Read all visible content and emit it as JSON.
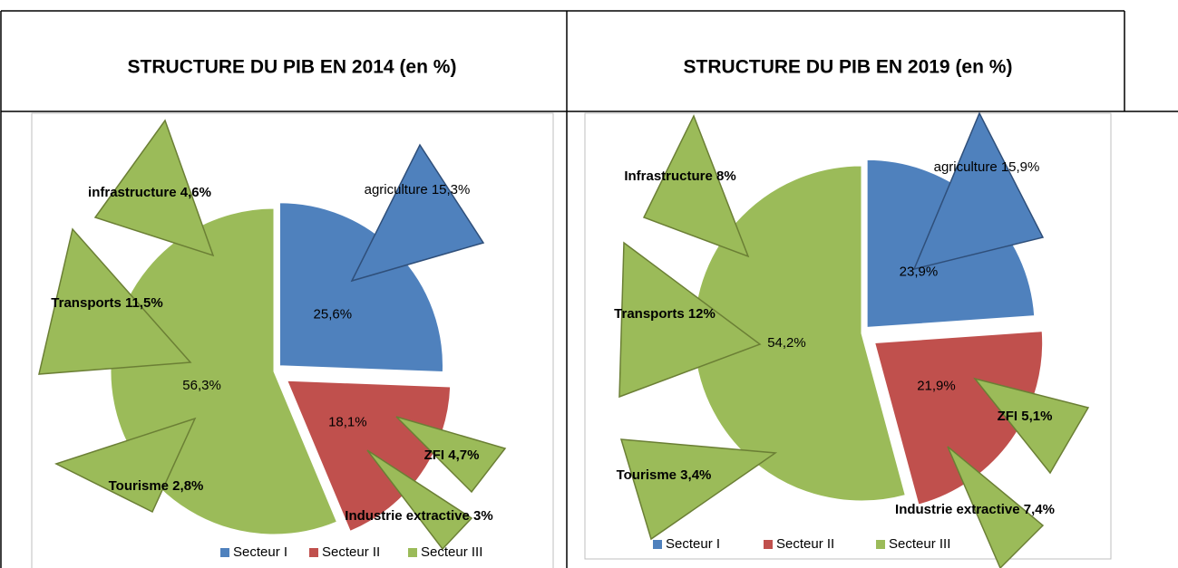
{
  "chart_data": [
    {
      "type": "pie",
      "title": "STRUCTURE DU PIB EN 2014 (en %)",
      "categories": [
        "Secteur I",
        "Secteur II",
        "Secteur III"
      ],
      "values": [
        25.6,
        18.1,
        56.3
      ],
      "value_labels": [
        "25,6%",
        "18,1%",
        "56,3%"
      ],
      "colors": [
        "#4f81bd",
        "#c0504d",
        "#9bbb59"
      ],
      "annotations": [
        "agriculture 15,3%",
        "infrastructure 4,6%",
        "Transports 11,5%",
        "Tourisme 2,8%",
        "ZFI  4,7%",
        "Industrie extractive 3%"
      ]
    },
    {
      "type": "pie",
      "title": "STRUCTURE DU PIB EN 2019 (en %)",
      "categories": [
        "Secteur I",
        "Secteur II",
        "Secteur III"
      ],
      "values": [
        23.9,
        21.9,
        54.2
      ],
      "value_labels": [
        "23,9%",
        "21,9%",
        "54,2%"
      ],
      "colors": [
        "#4f81bd",
        "#c0504d",
        "#9bbb59"
      ],
      "annotations": [
        "agriculture 15,9%",
        "Infrastructure 8%",
        "Transports 12%",
        "Tourisme 3,4%",
        "ZFI  5,1%",
        "Industrie extractive 7,4%"
      ]
    }
  ]
}
